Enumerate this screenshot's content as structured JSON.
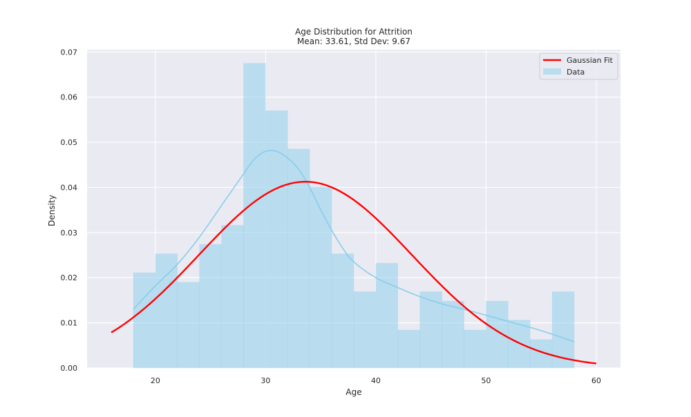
{
  "chart_data": {
    "type": "bar",
    "title": "Age Distribution for Attrition",
    "subtitle": "Mean: 33.61, Std Dev: 9.67",
    "xlabel": "Age",
    "ylabel": "Density",
    "xlim": [
      13.8,
      62.2
    ],
    "ylim": [
      0,
      0.0705
    ],
    "xticks": [
      20,
      30,
      40,
      50,
      60
    ],
    "yticks": [
      0.0,
      0.01,
      0.02,
      0.03,
      0.04,
      0.05,
      0.06,
      0.07
    ],
    "ytick_labels": [
      "0.00",
      "0.01",
      "0.02",
      "0.03",
      "0.04",
      "0.05",
      "0.06",
      "0.07"
    ],
    "grid": true,
    "legend_position": "top-right",
    "histogram": {
      "name": "Data",
      "color": "#87CEEB",
      "bin_edges": [
        18,
        20,
        22,
        24,
        26,
        28,
        30,
        32,
        34,
        36,
        38,
        40,
        42,
        44,
        46,
        48,
        50,
        52,
        54,
        56,
        58
      ],
      "densities": [
        0.0211,
        0.0253,
        0.019,
        0.0274,
        0.0316,
        0.0675,
        0.057,
        0.0485,
        0.0401,
        0.0253,
        0.0169,
        0.0232,
        0.0084,
        0.0169,
        0.0148,
        0.0084,
        0.0148,
        0.0106,
        0.0063,
        0.0169
      ]
    },
    "kde": {
      "color": "#87CEEB",
      "x": [
        18,
        20,
        22,
        24,
        26,
        28,
        29,
        30,
        31,
        32,
        33,
        34,
        35,
        36,
        37,
        38,
        40,
        42,
        44,
        46,
        48,
        50,
        52,
        54,
        56,
        58
      ],
      "y": [
        0.013,
        0.0182,
        0.023,
        0.029,
        0.036,
        0.043,
        0.0463,
        0.048,
        0.048,
        0.0465,
        0.044,
        0.04,
        0.035,
        0.0305,
        0.0265,
        0.0235,
        0.02,
        0.0178,
        0.0158,
        0.0142,
        0.013,
        0.0117,
        0.0103,
        0.009,
        0.0075,
        0.0058
      ]
    },
    "gaussian_fit": {
      "name": "Gaussian Fit",
      "color": "#FF0000",
      "mean": 33.61,
      "std": 9.67,
      "x_range": [
        16,
        60
      ]
    }
  }
}
